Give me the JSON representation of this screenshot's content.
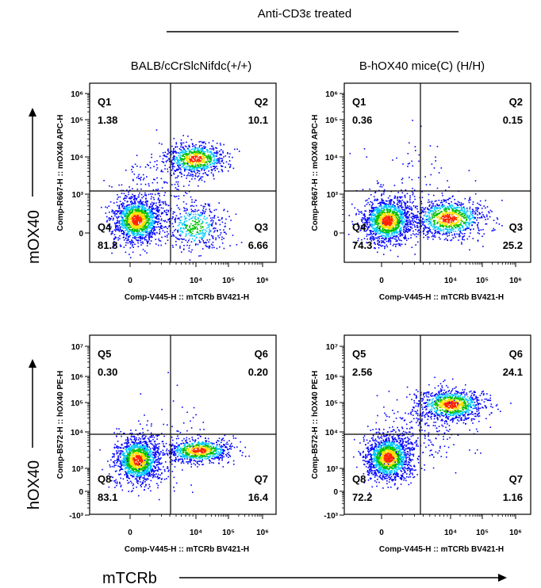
{
  "header": {
    "treatment": "Anti-CD3ε treated"
  },
  "columns": [
    {
      "title": "BALB/cCrSlcNifdc(+/+)"
    },
    {
      "title": "B-hOX40 mice(C) (H/H)"
    }
  ],
  "row_labels": [
    "mOX40",
    "hOX40"
  ],
  "bottom_label": "mTCRb",
  "colors": {
    "line": "#000000",
    "hot": "#ff2200",
    "mid": "#ffe000",
    "low": "#00c000",
    "cool": "#00c8ff",
    "sparse": "#0000ff"
  },
  "chart_data": [
    {
      "type": "scatter",
      "title": "BALB/cCrSlcNifdc(+/+)",
      "xlabel": "Comp-V445-H :: mTCRb BV421-H",
      "ylabel": "Comp-R667-H :: mOX40 APC-H",
      "x_ticks": [
        "0",
        "10^4",
        "10^5",
        "10^6"
      ],
      "y_ticks": [
        "0",
        "10^3",
        "10^4",
        "10^5",
        "10^6"
      ],
      "quadrants": [
        {
          "name": "Q1",
          "value": "1.38"
        },
        {
          "name": "Q2",
          "value": "10.1"
        },
        {
          "name": "Q3",
          "value": "6.66"
        },
        {
          "name": "Q4",
          "value": "81.8"
        }
      ]
    },
    {
      "type": "scatter",
      "title": "B-hOX40 mice(C) (H/H)",
      "xlabel": "Comp-V445-H :: mTCRb BV421-H",
      "ylabel": "Comp-R667-H :: mOX40 APC-H",
      "x_ticks": [
        "0",
        "10^4",
        "10^5",
        "10^6"
      ],
      "y_ticks": [
        "0",
        "10^3",
        "10^4",
        "10^5",
        "10^6"
      ],
      "quadrants": [
        {
          "name": "Q1",
          "value": "0.36"
        },
        {
          "name": "Q2",
          "value": "0.15"
        },
        {
          "name": "Q3",
          "value": "25.2"
        },
        {
          "name": "Q4",
          "value": "74.3"
        }
      ]
    },
    {
      "type": "scatter",
      "title": "BALB/cCrSlcNifdc(+/+)",
      "xlabel": "Comp-V445-H :: mTCRb BV421-H",
      "ylabel": "Comp-B572-H :: hOX40 PE-H",
      "x_ticks": [
        "0",
        "10^4",
        "10^5",
        "10^6"
      ],
      "y_ticks": [
        "-10^3",
        "0",
        "10^3",
        "10^4",
        "10^5",
        "10^6",
        "10^7"
      ],
      "quadrants": [
        {
          "name": "Q5",
          "value": "0.30"
        },
        {
          "name": "Q6",
          "value": "0.20"
        },
        {
          "name": "Q7",
          "value": "16.4"
        },
        {
          "name": "Q8",
          "value": "83.1"
        }
      ]
    },
    {
      "type": "scatter",
      "title": "B-hOX40 mice(C) (H/H)",
      "xlabel": "Comp-V445-H :: mTCRb BV421-H",
      "ylabel": "Comp-B572-H :: hOX40 PE-H",
      "x_ticks": [
        "0",
        "10^4",
        "10^5",
        "10^6"
      ],
      "y_ticks": [
        "-10^3",
        "0",
        "10^3",
        "10^4",
        "10^5",
        "10^6",
        "10^7"
      ],
      "quadrants": [
        {
          "name": "Q5",
          "value": "2.56"
        },
        {
          "name": "Q6",
          "value": "24.1"
        },
        {
          "name": "Q7",
          "value": "1.16"
        },
        {
          "name": "Q8",
          "value": "72.2"
        }
      ]
    }
  ]
}
